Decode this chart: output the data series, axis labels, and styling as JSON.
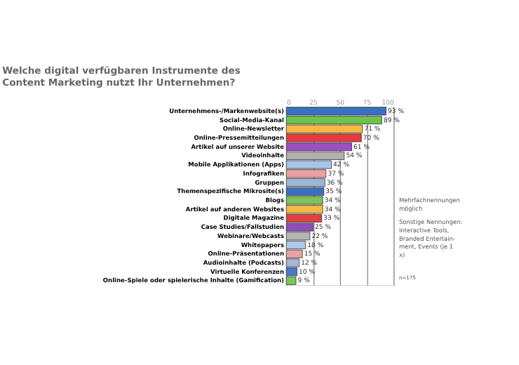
{
  "chart_data": {
    "type": "bar",
    "orientation": "horizontal",
    "title": [
      "Welche digital verfügbaren Instrumente des",
      "Content Marketing nutzt Ihr Unternehmen?"
    ],
    "categories": [
      "Unternehmens-/Markenwebsite(s)",
      "Social-Media-Kanal",
      "Online-Newsletter",
      "Online-Pressemitteilungen",
      "Artikel auf unserer Website",
      "Videoinhalte",
      "Mobile Applikationen (Apps)",
      "Infografiken",
      "Gruppen",
      "Themenspezifische Mikrosite(s)",
      "Blogs",
      "Artikel auf anderen Websites",
      "Digitale Magazine",
      "Case Studies/Fallstudien",
      "Webinare/Webcasts",
      "Whitepapers",
      "Online-Präsentationen",
      "Audioinhalte (Podcasts)",
      "Virtuelle Konferenzen",
      "Online-Spiele oder spielerische Inhalte (Gamification)"
    ],
    "values": [
      93,
      89,
      71,
      70,
      61,
      54,
      42,
      37,
      36,
      35,
      34,
      34,
      33,
      25,
      22,
      18,
      15,
      12,
      10,
      9
    ],
    "value_labels": [
      "93 %",
      "89 %",
      "71 %",
      "70 %",
      "61 %",
      "54 %",
      "42 %",
      "37 %",
      "36 %",
      "35 %",
      "34 %",
      "34 %",
      "33 %",
      "25 %",
      "22 %",
      "18 %",
      "15 %",
      "12 %",
      "10 %",
      "9 %"
    ],
    "colors": [
      "#3a6fc4",
      "#6cc24a",
      "#f5b942",
      "#e8393f",
      "#9b4fc0",
      "#b0b0b0",
      "#a8c4e6",
      "#e8a0a0",
      "#9fb5d5",
      "#3d6fc0",
      "#7cc45a",
      "#f5b942",
      "#e04040",
      "#8e4fb8",
      "#b5b5b5",
      "#b0c8e8",
      "#e4a4a4",
      "#a5b8d8",
      "#4a78c8",
      "#7cc45a"
    ],
    "xlim": [
      0,
      100
    ],
    "xticks": [
      0,
      25,
      50,
      75,
      100
    ],
    "grid": "x",
    "annotations": [
      "Mehrfachnennungen möglich",
      "Sonstige Nennungen: Interactive Tools, Branded Entertain- ment, Events (je 1 x)",
      "n=175"
    ]
  }
}
